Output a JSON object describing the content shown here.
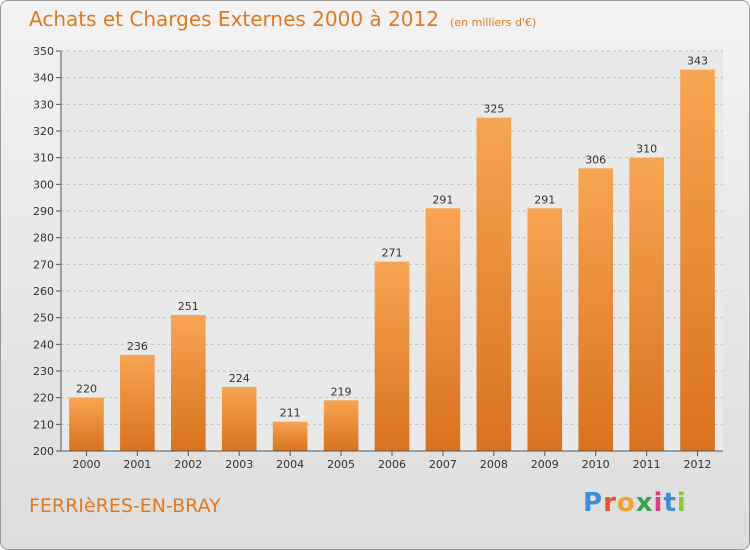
{
  "header": {
    "title": "Achats et Charges Externes 2000 à 2012",
    "unit": "(en milliers d'€)"
  },
  "footer": {
    "commune": "FERRIèRES-EN-BRAY",
    "logo_letters": [
      "P",
      "r",
      "o",
      "x",
      "i",
      "t",
      "i"
    ],
    "logo_colors": [
      "#3c8fd6",
      "#e8532b",
      "#f2a42a",
      "#3aa64a",
      "#d93d8a",
      "#3c8fd6",
      "#8cc63f"
    ]
  },
  "chart_data": {
    "type": "bar",
    "categories": [
      "2000",
      "2001",
      "2002",
      "2003",
      "2004",
      "2005",
      "2006",
      "2007",
      "2008",
      "2009",
      "2010",
      "2011",
      "2012"
    ],
    "values": [
      220,
      236,
      251,
      224,
      211,
      219,
      271,
      291,
      325,
      291,
      306,
      310,
      343
    ],
    "ylim": [
      200,
      350
    ],
    "yticks": [
      200,
      210,
      220,
      230,
      240,
      250,
      260,
      270,
      280,
      290,
      300,
      310,
      320,
      330,
      340,
      350
    ],
    "grid": true,
    "bar_color_top": "#f7a552",
    "bar_color_bottom": "#d9721e",
    "data_labels": true
  }
}
